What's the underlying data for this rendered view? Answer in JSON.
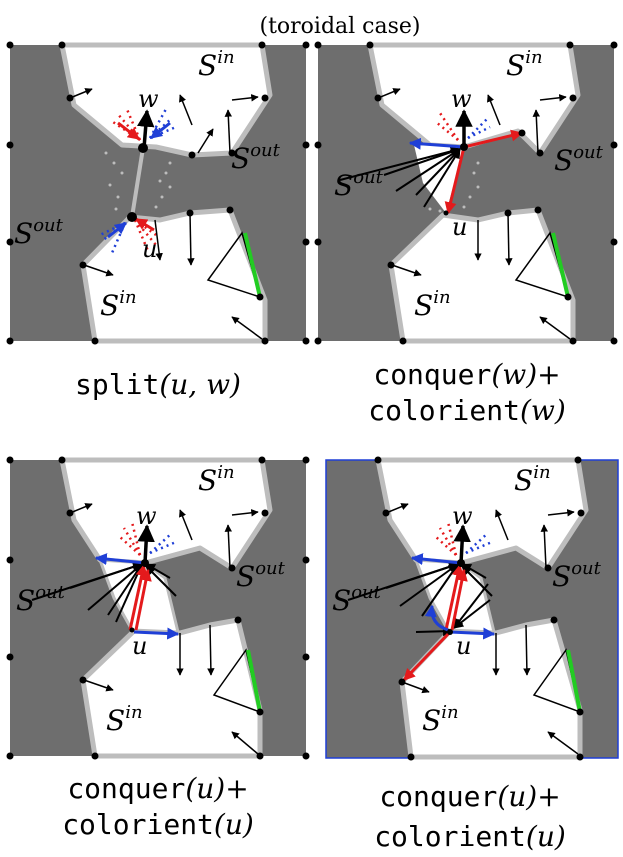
{
  "title": "(toroidal case)",
  "region_labels": {
    "in": "S",
    "in_sup": "in",
    "out": "S",
    "out_sup": "out"
  },
  "vertex_labels": {
    "w": "w",
    "u": "u"
  },
  "captions": {
    "panel1": {
      "line1_func": "split",
      "line1_args": "(u, w)"
    },
    "panel2": {
      "line1_func": "conquer",
      "line1_args": "(w)+",
      "line2_func": "colorient",
      "line2_args": "(w)"
    },
    "panel3": {
      "line1_func": "conquer",
      "line1_args": "(u)+",
      "line2_func": "colorient",
      "line2_args": "(u)"
    },
    "panel4": {
      "line1_func": "conquer",
      "line1_args": "(u)+",
      "line2_func": "colorient",
      "line2_args": "(u)"
    }
  },
  "colors": {
    "outer_region": "#6e6e6e",
    "inner_region": "#ffffff",
    "boundary": "#bdbdbd",
    "red": "#e41a1c",
    "blue": "#1f3fd6",
    "green": "#22cc22",
    "panel4_frame": "#1f3fd6"
  }
}
